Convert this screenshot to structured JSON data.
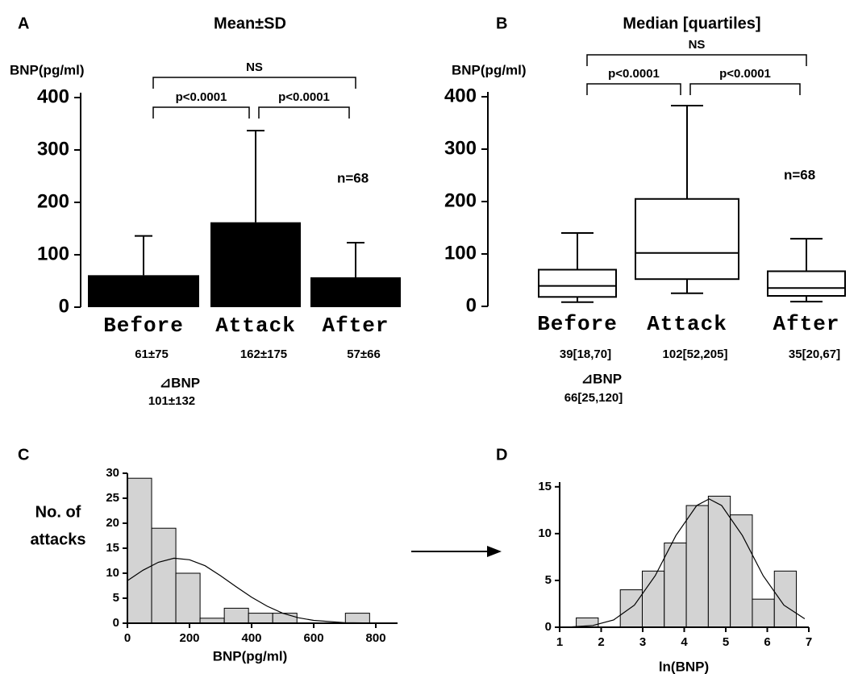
{
  "chart_data": [
    {
      "type": "bar",
      "panel_label": "A",
      "title": "Mean±SD",
      "y_label": "BNP(pg/ml)",
      "categories": [
        "Before",
        "Attack",
        "After"
      ],
      "values": [
        61,
        162,
        57
      ],
      "errors": [
        75,
        175,
        66
      ],
      "value_labels": [
        "61±75",
        "162±175",
        "57±66"
      ],
      "color": "#000000",
      "ylim": [
        0,
        400
      ],
      "yticks": [
        0,
        100,
        200,
        300,
        400
      ],
      "comparisons": [
        "p<0.0001",
        "p<0.0001",
        "NS"
      ],
      "n_label": "n=68",
      "delta_label": "⊿BNP",
      "delta_value": "101±132"
    },
    {
      "type": "box",
      "panel_label": "B",
      "title": "Median [quartiles]",
      "y_label": "BNP(pg/ml)",
      "categories": [
        "Before",
        "Attack",
        "After"
      ],
      "median": [
        39,
        102,
        35
      ],
      "q1": [
        18,
        52,
        20
      ],
      "q3": [
        70,
        205,
        67
      ],
      "whisker_low": [
        8,
        25,
        9
      ],
      "whisker_high": [
        140,
        383,
        129
      ],
      "value_labels": [
        "39[18,70]",
        "102[52,205]",
        "35[20,67]"
      ],
      "ylim": [
        0,
        400
      ],
      "yticks": [
        0,
        100,
        200,
        300,
        400
      ],
      "comparisons": [
        "p<0.0001",
        "p<0.0001",
        "NS"
      ],
      "n_label": "n=68",
      "delta_label": "⊿BNP",
      "delta_value": "66[25,120]"
    },
    {
      "type": "histogram",
      "panel_label": "C",
      "y_label": [
        "No. of",
        "attacks"
      ],
      "x_label": "BNP(pg/ml)",
      "bins": [
        0,
        78,
        156,
        234,
        312,
        390,
        468,
        546,
        624,
        702,
        780
      ],
      "counts": [
        29,
        19,
        10,
        1,
        3,
        2,
        2,
        0,
        0,
        2
      ],
      "color": "#d3d3d3",
      "xlim": [
        0,
        870
      ],
      "xticks": [
        0,
        200,
        400,
        600,
        800
      ],
      "ylim": [
        0,
        30
      ],
      "yticks": [
        0,
        5,
        10,
        15,
        20,
        25,
        30
      ],
      "curve": {
        "x": [
          0,
          50,
          100,
          150,
          200,
          250,
          300,
          350,
          400,
          450,
          500,
          550,
          600,
          700,
          850
        ],
        "y": [
          8.5,
          10.6,
          12.2,
          13.0,
          12.7,
          11.5,
          9.5,
          7.3,
          5.2,
          3.4,
          2.0,
          1.1,
          0.57,
          0.11,
          0
        ]
      }
    },
    {
      "type": "histogram",
      "panel_label": "D",
      "x_label": "ln(BNP)",
      "bins": [
        1.4,
        1.93,
        2.46,
        2.99,
        3.52,
        4.05,
        4.58,
        5.11,
        5.64,
        6.17,
        6.7
      ],
      "counts": [
        1,
        0,
        4,
        6,
        9,
        13,
        14,
        12,
        3,
        6
      ],
      "color": "#d3d3d3",
      "xlim": [
        1,
        7
      ],
      "xticks": [
        1,
        2,
        3,
        4,
        5,
        6,
        7
      ],
      "ylim": [
        0,
        15.5
      ],
      "yticks": [
        0,
        5,
        10,
        15
      ],
      "curve": {
        "x": [
          1.3,
          1.8,
          2.3,
          2.8,
          3.3,
          3.8,
          4.3,
          4.6,
          4.9,
          5.4,
          5.9,
          6.4,
          6.9
        ],
        "y": [
          0.04,
          0.19,
          0.78,
          2.36,
          5.5,
          9.8,
          13.0,
          13.7,
          13.0,
          9.8,
          5.5,
          2.36,
          0.9
        ]
      }
    }
  ]
}
